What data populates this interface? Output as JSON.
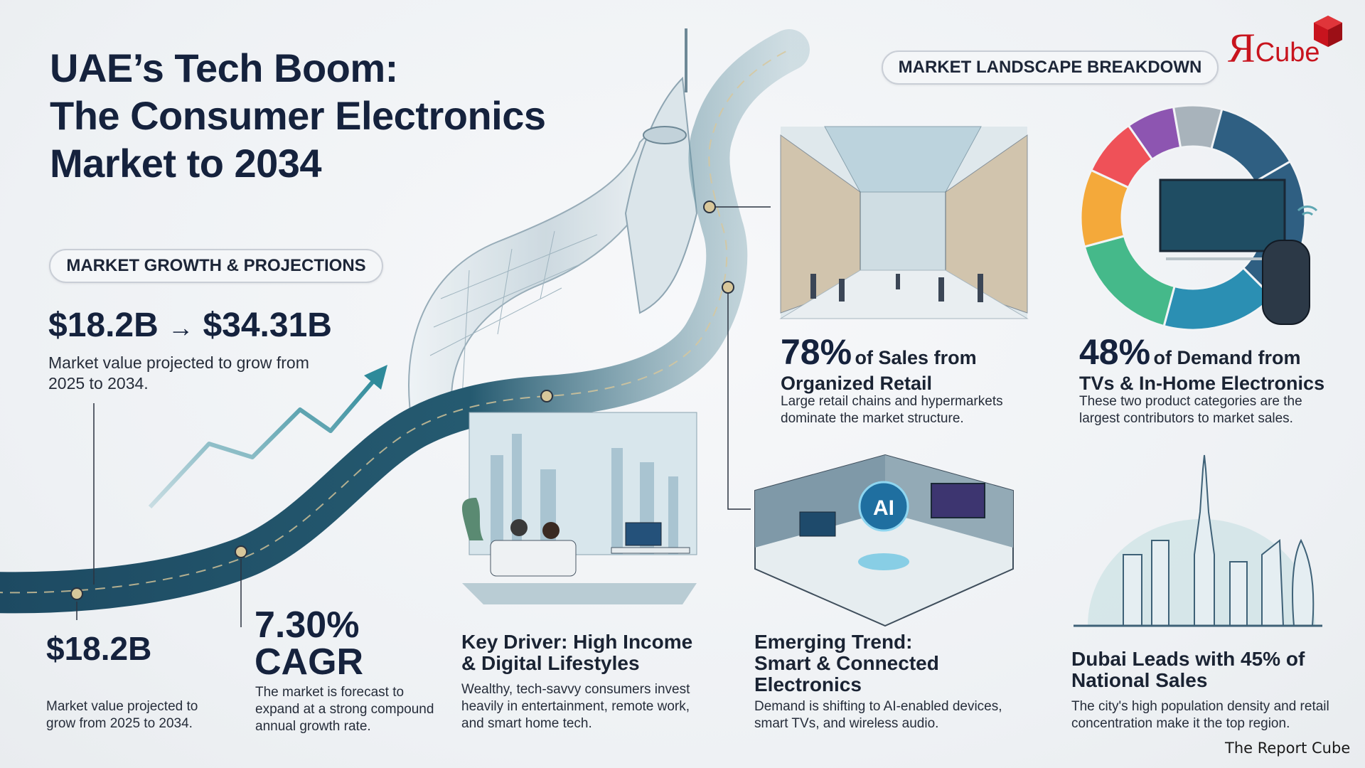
{
  "title": {
    "line1": "UAE’s Tech Boom:",
    "line2": "The Consumer Electronics",
    "line3": "Market to 2034"
  },
  "logo": {
    "text_r": "Я",
    "text_cube": "Cube",
    "color": "#c8141e"
  },
  "sections": {
    "growth_pill": "MARKET GROWTH & PROJECTIONS",
    "landscape_pill": "MARKET LANDSCAPE BREAKDOWN"
  },
  "growth": {
    "range_from": "$18.2B",
    "arrow": "→",
    "range_to": "$34.31B",
    "range_desc": "Market value projected to grow from 2025 to 2034.",
    "base_value": "$18.2B",
    "base_desc": "Market value projected to grow from 2025 to 2034.",
    "cagr_value": "7.30%",
    "cagr_label": "CAGR",
    "cagr_desc": "The market is forecast to expand at a strong compound annual growth rate."
  },
  "driver": {
    "heading": "Key Driver: High Income & Digital Lifestyles",
    "desc": "Wealthy, tech-savvy consumers invest heavily in entertainment, remote work, and smart home tech."
  },
  "retail": {
    "pct": "78%",
    "heading_rest": "of Sales from",
    "heading_line2": "Organized Retail",
    "desc": "Large retail chains and hypermarkets dominate the market structure."
  },
  "demand": {
    "pct": "48%",
    "heading_rest": "of Demand from",
    "heading_line2": "TVs & In-Home Electronics",
    "desc": "These two product categories are the largest contributors to market sales.",
    "donut_colors": [
      "#2f5f82",
      "#2f5f82",
      "#2b8fb3",
      "#45b98a",
      "#f4a93a",
      "#ef5158",
      "#8d55b1",
      "#a8b3bb"
    ]
  },
  "trend": {
    "heading": "Emerging Trend: Smart & Connected Electronics",
    "badge": "AI",
    "desc": "Demand is shifting to AI-enabled devices, smart TVs, and wireless audio."
  },
  "dubai": {
    "heading": "Dubai Leads with 45% of National Sales",
    "desc": "The city's high population density and retail concentration make it the top region."
  },
  "footer": {
    "credit": "The Report Cube"
  },
  "colors": {
    "navy": "#15223d",
    "road": "#1f4f66",
    "accent": "#2e8a9a",
    "marker": "#d8c79a"
  }
}
